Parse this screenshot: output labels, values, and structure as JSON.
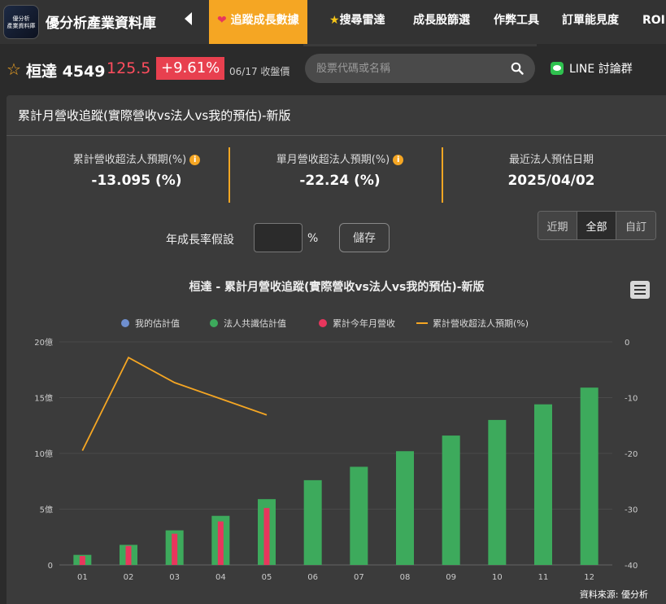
{
  "nav": {
    "logo_line1": "優分析",
    "logo_line2": "產業資料庫",
    "brand": "優分析產業資料庫",
    "items": [
      {
        "label": "追蹤成長數據",
        "active": true
      },
      {
        "label": "搜尋雷達",
        "active": false
      },
      {
        "label": "成長股篩選",
        "active": false
      },
      {
        "label": "作弊工具",
        "active": false
      },
      {
        "label": "訂單能見度",
        "active": false
      },
      {
        "label": "ROI",
        "active": false
      }
    ]
  },
  "stock": {
    "name": "桓達 4549",
    "price": "125.5",
    "change": "+9.61%",
    "date": "06/17 收盤價"
  },
  "search": {
    "placeholder": "股票代碼或名稱"
  },
  "line_group": "LINE 討論群",
  "panel": {
    "title": "累計月營收追蹤(實際營收vs法人vs我的預估)-新版",
    "kpis": [
      {
        "label": "累計營收超法人預期(%)",
        "value": "-13.095 (%)"
      },
      {
        "label": "單月營收超法人預期(%)",
        "value": "-22.24 (%)"
      },
      {
        "label": "最近法人預估日期",
        "value": "2025/04/02"
      }
    ],
    "growth_label": "年成長率假設",
    "growth_value": "",
    "percent": "%",
    "save_label": "儲存",
    "range_buttons": [
      {
        "label": "近期",
        "active": false
      },
      {
        "label": "全部",
        "active": true
      },
      {
        "label": "自訂",
        "active": false
      }
    ],
    "source": "資料來源: 優分析"
  },
  "colors": {
    "accent": "#f5a623",
    "series_mine": "#6f8fcf",
    "series_consensus": "#3daa5c",
    "series_actual": "#e8365d",
    "series_beat": "#f5a623"
  },
  "chart_data": {
    "type": "bar",
    "title": "桓達 - 累計月營收追蹤(實際營收vs法人vs我的預估)-新版",
    "categories": [
      "01",
      "02",
      "03",
      "04",
      "05",
      "06",
      "07",
      "08",
      "09",
      "10",
      "11",
      "12"
    ],
    "yunit": "億",
    "ylim": [
      0,
      20
    ],
    "yticks": [
      "0",
      "5億",
      "10億",
      "15億",
      "20億"
    ],
    "y2lim": [
      -40,
      0
    ],
    "y2ticks": [
      "0",
      "-10",
      "-20",
      "-30",
      "-40"
    ],
    "legend_position": "top-center",
    "series": [
      {
        "name": "我的估計值",
        "type": "bar",
        "values": [
          null,
          null,
          null,
          null,
          null,
          null,
          null,
          null,
          null,
          null,
          null,
          null
        ]
      },
      {
        "name": "法人共識估計值",
        "type": "bar",
        "values": [
          0.9,
          1.8,
          3.1,
          4.4,
          5.9,
          7.6,
          8.8,
          10.2,
          11.6,
          13.0,
          14.4,
          15.9
        ]
      },
      {
        "name": "累計今年月營收",
        "type": "bar",
        "values": [
          0.8,
          1.7,
          2.8,
          3.9,
          5.1,
          null,
          null,
          null,
          null,
          null,
          null,
          null
        ]
      },
      {
        "name": "累計營收超法人預期(%)",
        "type": "line",
        "axis": "right",
        "values": [
          -19.5,
          -2.8,
          -7.3,
          -10.2,
          -13.1,
          null,
          null,
          null,
          null,
          null,
          null,
          null
        ]
      }
    ]
  }
}
